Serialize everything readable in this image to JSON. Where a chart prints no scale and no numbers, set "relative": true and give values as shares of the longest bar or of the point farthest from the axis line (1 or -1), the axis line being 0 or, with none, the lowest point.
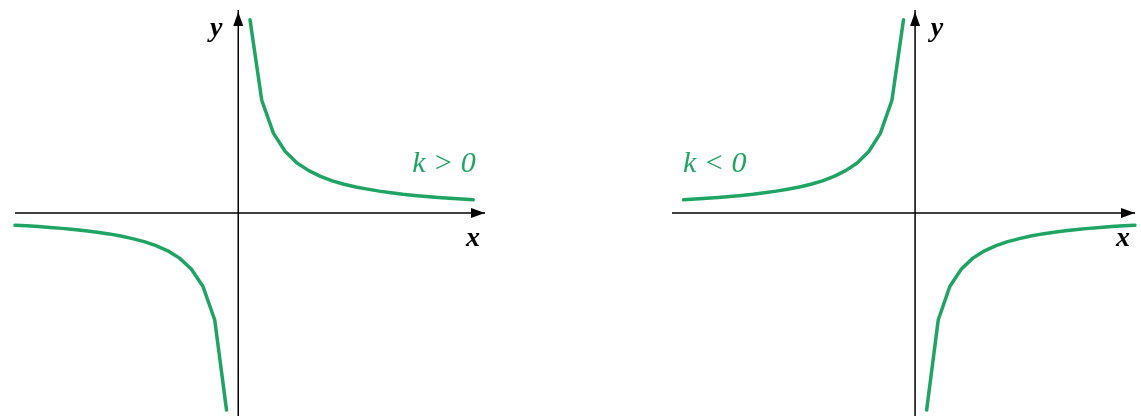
{
  "chart_data": [
    {
      "type": "line",
      "relative": true,
      "xlabel": "x",
      "ylabel": "y",
      "categories": [
        null,
        null,
        null,
        null,
        null,
        null,
        null,
        null,
        null,
        null,
        null,
        null,
        null,
        null,
        null,
        null,
        null,
        null,
        null,
        null,
        null,
        null,
        null,
        null,
        null,
        null,
        null,
        null,
        null,
        null,
        null,
        null,
        null,
        null,
        null,
        null,
        null,
        null,
        null,
        null,
        null
      ],
      "series": [
        {
          "color": "#1fa463",
          "values": [
            -0.062,
            -0.065,
            -0.069,
            -0.074,
            -0.078,
            -0.084,
            -0.09,
            -0.098,
            -0.106,
            -0.117,
            -0.13,
            -0.145,
            -0.166,
            -0.192,
            -0.229,
            -0.284,
            -0.373,
            -0.543,
            -1,
            null,
            null,
            null,
            null,
            null,
            null,
            null,
            null,
            null,
            null,
            null,
            null,
            null,
            null,
            null,
            null,
            null,
            null,
            null,
            null,
            null,
            null
          ]
        },
        {
          "name": "k > 0",
          "color": "#1fa463",
          "values": [
            null,
            null,
            null,
            null,
            null,
            null,
            null,
            null,
            null,
            null,
            null,
            null,
            null,
            null,
            null,
            null,
            null,
            null,
            null,
            null,
            0.98,
            0.572,
            0.404,
            0.312,
            0.254,
            0.215,
            0.186,
            0.163,
            0.146,
            0.132,
            0.121,
            0.111,
            0.103,
            0.095,
            0.089,
            0.084,
            0.079,
            0.075,
            0.071,
            0.067,
            null
          ]
        }
      ]
    },
    {
      "type": "line",
      "relative": true,
      "xlabel": "x",
      "ylabel": "y",
      "categories": [
        null,
        null,
        null,
        null,
        null,
        null,
        null,
        null,
        null,
        null,
        null,
        null,
        null,
        null,
        null,
        null,
        null,
        null,
        null,
        null,
        null,
        null,
        null,
        null,
        null,
        null,
        null,
        null,
        null,
        null,
        null,
        null,
        null,
        null,
        null,
        null,
        null,
        null,
        null,
        null,
        null
      ],
      "series": [
        {
          "name": "k < 0",
          "color": "#1fa463",
          "values": [
            null,
            0.067,
            0.071,
            0.075,
            0.079,
            0.084,
            0.089,
            0.095,
            0.103,
            0.111,
            0.121,
            0.132,
            0.146,
            0.163,
            0.186,
            0.215,
            0.254,
            0.312,
            0.404,
            0.572,
            0.98,
            null,
            null,
            null,
            null,
            null,
            null,
            null,
            null,
            null,
            null,
            null,
            null,
            null,
            null,
            null,
            null,
            null,
            null,
            null,
            null
          ]
        },
        {
          "color": "#1fa463",
          "values": [
            null,
            null,
            null,
            null,
            null,
            null,
            null,
            null,
            null,
            null,
            null,
            null,
            null,
            null,
            null,
            null,
            null,
            null,
            null,
            null,
            null,
            null,
            -1,
            -0.543,
            -0.373,
            -0.284,
            -0.229,
            -0.192,
            -0.166,
            -0.145,
            -0.13,
            -0.117,
            -0.106,
            -0.098,
            -0.09,
            -0.084,
            -0.078,
            -0.074,
            -0.069,
            -0.065,
            -0.062
          ]
        }
      ]
    }
  ]
}
